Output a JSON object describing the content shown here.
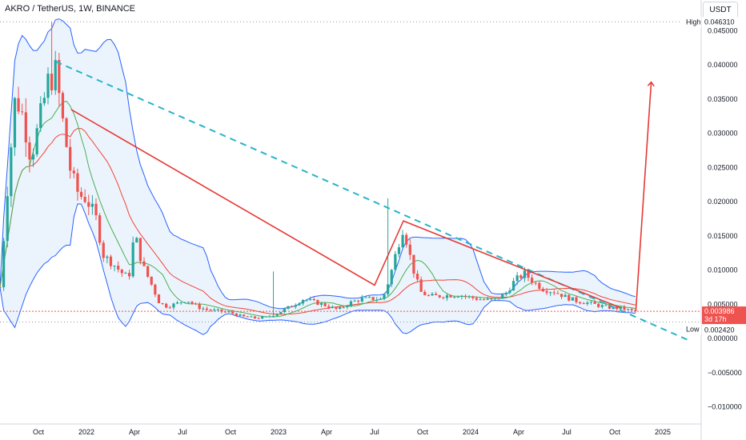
{
  "header": {
    "symbol_line": "AKRO / TetherUS, 1W, BINANCE"
  },
  "currency": "USDT",
  "price_axis": {
    "ticks": [
      {
        "value": 0.045,
        "label": "0.045000"
      },
      {
        "value": 0.04,
        "label": "0.040000"
      },
      {
        "value": 0.035,
        "label": "0.035000"
      },
      {
        "value": 0.03,
        "label": "0.030000"
      },
      {
        "value": 0.025,
        "label": "0.025000"
      },
      {
        "value": 0.02,
        "label": "0.020000"
      },
      {
        "value": 0.015,
        "label": "0.015000"
      },
      {
        "value": 0.01,
        "label": "0.010000"
      },
      {
        "value": 0.005,
        "label": "0.005000"
      },
      {
        "value": 0.0,
        "label": "0.000000"
      },
      {
        "value": -0.005,
        "label": "−0.005000"
      },
      {
        "value": -0.01,
        "label": "−0.010000"
      }
    ]
  },
  "high_marker": {
    "label": "High",
    "value": 0.04631,
    "value_label": "0.046310"
  },
  "low_marker": {
    "label": "Low",
    "value": 0.00242,
    "value_label": "0.002420"
  },
  "last_price": {
    "value": 0.003986,
    "value_label": "0.003986",
    "countdown": "3d 17h"
  },
  "time_axis": {
    "ticks": [
      {
        "t": 0.0,
        "label": "Oct"
      },
      {
        "t": 0.25,
        "label": "2022"
      },
      {
        "t": 0.5,
        "label": "Apr"
      },
      {
        "t": 0.75,
        "label": "Jul"
      },
      {
        "t": 1.0,
        "label": "Oct"
      },
      {
        "t": 1.25,
        "label": "2023"
      },
      {
        "t": 1.5,
        "label": "Apr"
      },
      {
        "t": 1.75,
        "label": "Jul"
      },
      {
        "t": 2.0,
        "label": "Oct"
      },
      {
        "t": 2.25,
        "label": "2024"
      },
      {
        "t": 2.5,
        "label": "Apr"
      },
      {
        "t": 2.75,
        "label": "Jul"
      },
      {
        "t": 3.0,
        "label": "Oct"
      },
      {
        "t": 3.25,
        "label": "2025"
      }
    ]
  },
  "chart_data": {
    "type": "candlestick",
    "title": "AKRO / TetherUS, 1W, BINANCE",
    "time_unit_note": "t in years since Oct 2021 tick",
    "ylim": [
      -0.0125,
      0.0495
    ],
    "xlim": [
      -0.2,
      3.45
    ],
    "grid": false,
    "price_anchors": [
      [
        -0.2,
        0.0075
      ],
      [
        -0.16,
        0.0225
      ],
      [
        -0.12,
        0.0355
      ],
      [
        -0.08,
        0.0325
      ],
      [
        -0.04,
        0.0265
      ],
      [
        0.0,
        0.031
      ],
      [
        0.05,
        0.0375
      ],
      [
        0.09,
        0.039
      ],
      [
        0.13,
        0.031
      ],
      [
        0.17,
        0.024
      ],
      [
        0.21,
        0.021
      ],
      [
        0.25,
        0.0205
      ],
      [
        0.3,
        0.0175
      ],
      [
        0.34,
        0.012
      ],
      [
        0.38,
        0.0112
      ],
      [
        0.43,
        0.0097
      ],
      [
        0.47,
        0.0088
      ],
      [
        0.5,
        0.0155
      ],
      [
        0.54,
        0.0108
      ],
      [
        0.59,
        0.0078
      ],
      [
        0.63,
        0.0052
      ],
      [
        0.67,
        0.0047
      ],
      [
        0.72,
        0.0051
      ],
      [
        0.77,
        0.0057
      ],
      [
        0.83,
        0.0046
      ],
      [
        0.88,
        0.0042
      ],
      [
        0.94,
        0.004
      ],
      [
        1.0,
        0.0038
      ],
      [
        1.06,
        0.0032
      ],
      [
        1.13,
        0.003
      ],
      [
        1.19,
        0.0031
      ],
      [
        1.25,
        0.0038
      ],
      [
        1.32,
        0.0048
      ],
      [
        1.38,
        0.0058
      ],
      [
        1.44,
        0.0053
      ],
      [
        1.5,
        0.0048
      ],
      [
        1.56,
        0.0042
      ],
      [
        1.62,
        0.0052
      ],
      [
        1.68,
        0.0058
      ],
      [
        1.75,
        0.0058
      ],
      [
        1.79,
        0.0057
      ],
      [
        1.83,
        0.009
      ],
      [
        1.87,
        0.0135
      ],
      [
        1.9,
        0.0165
      ],
      [
        1.93,
        0.0125
      ],
      [
        1.96,
        0.0092
      ],
      [
        1.99,
        0.0068
      ],
      [
        2.03,
        0.0062
      ],
      [
        2.08,
        0.0062
      ],
      [
        2.13,
        0.0063
      ],
      [
        2.19,
        0.0064
      ],
      [
        2.25,
        0.006
      ],
      [
        2.31,
        0.0057
      ],
      [
        2.37,
        0.0056
      ],
      [
        2.43,
        0.0065
      ],
      [
        2.48,
        0.0085
      ],
      [
        2.53,
        0.0095
      ],
      [
        2.58,
        0.0082
      ],
      [
        2.63,
        0.0072
      ],
      [
        2.69,
        0.0068
      ],
      [
        2.75,
        0.006
      ],
      [
        2.8,
        0.0055
      ],
      [
        2.86,
        0.0052
      ],
      [
        2.92,
        0.0048
      ],
      [
        2.98,
        0.0045
      ],
      [
        3.04,
        0.0044
      ],
      [
        3.08,
        0.0041
      ],
      [
        3.11,
        0.0039
      ]
    ],
    "spikes": [
      {
        "t": 0.06,
        "high": 0.04631
      },
      {
        "t": 1.22,
        "high": 0.0098
      },
      {
        "t": 1.82,
        "high": 0.0205
      }
    ],
    "indicator_colors": {
      "up_candle": "#26a69a",
      "down_candle": "#ef5350",
      "bollinger_band": "#2962ff",
      "bollinger_fill": "#e3f0fc",
      "ma_fast": "#4caf50",
      "ma_slow": "#f44336",
      "trendline_dashed": "#26b5c7",
      "pattern_lines": "#e53935"
    },
    "annotations": {
      "dashed_trendline": [
        [
          0.09,
          0.0405
        ],
        [
          3.38,
          -0.0002
        ]
      ],
      "red_pattern": [
        [
          0.17,
          0.0335
        ],
        [
          1.75,
          0.0078
        ],
        [
          1.9,
          0.0172
        ],
        [
          3.03,
          0.0045
        ]
      ],
      "red_arrow": [
        [
          3.11,
          0.0041
        ],
        [
          3.19,
          0.0375
        ]
      ]
    }
  }
}
